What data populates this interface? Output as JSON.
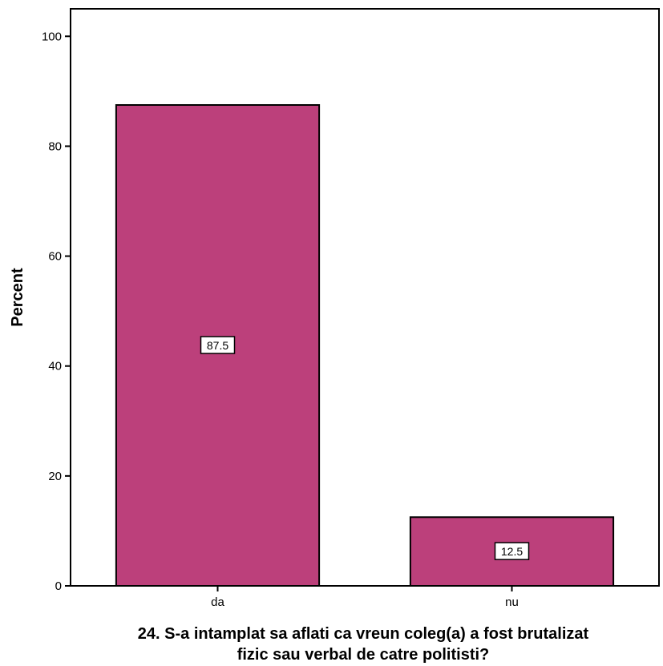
{
  "chart_data": {
    "type": "bar",
    "categories": [
      "da",
      "nu"
    ],
    "values": [
      87.5,
      12.5
    ],
    "data_labels": [
      "87.5",
      "12.5"
    ],
    "title": "",
    "xlabel_lines": [
      "24. S-a intamplat sa aflati ca vreun coleg(a) a fost brutalizat",
      "fizic sau verbal de catre politisti?"
    ],
    "ylabel": "Percent",
    "ylim": [
      0,
      105
    ],
    "yticks": [
      0,
      20,
      40,
      60,
      80,
      100
    ],
    "grid": false,
    "bar_color": "#bc407b"
  }
}
